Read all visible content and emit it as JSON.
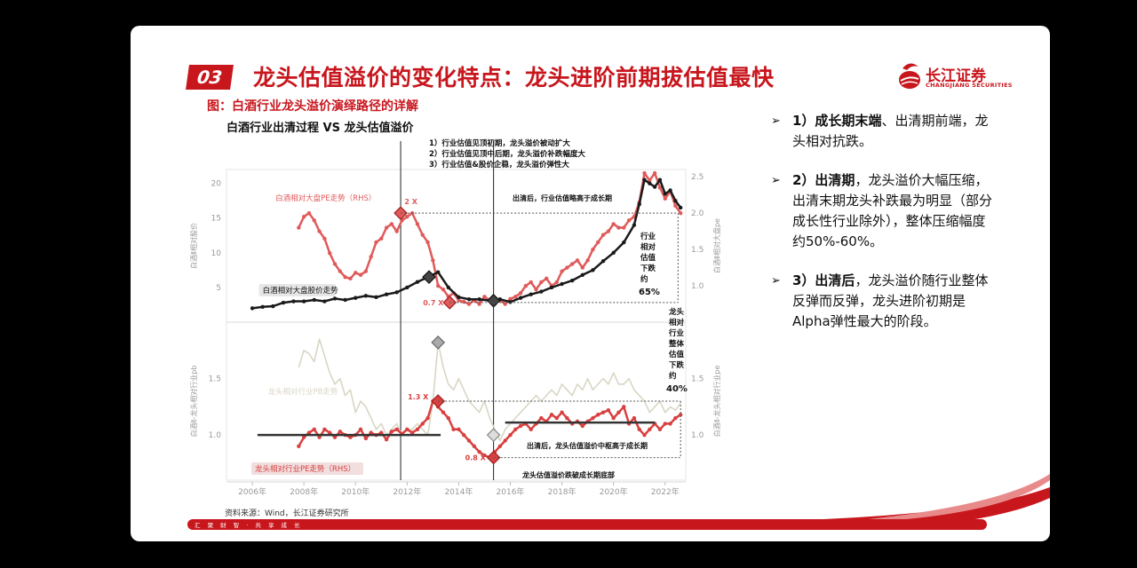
{
  "header": {
    "section_number": "03",
    "title": "龙头估值溢价的变化特点：龙头进阶前期拔估值最快",
    "logo_cn": "长江证券",
    "logo_en": "CHANGJIANG SECURITIES"
  },
  "figure": {
    "caption": "图：白酒行业龙头溢价演绎路径的详解",
    "chart_title": "白酒行业出清过程 VS 龙头估值溢价",
    "source": "资料来源：Wind，长江证券研究所"
  },
  "footer": {
    "slogan": "汇 聚 财 智 · 共 享 成 长"
  },
  "bullets": [
    {
      "bold": "1）成长期末端",
      "text": "、出清期前端，龙头相对抗跌。"
    },
    {
      "bold": "2）出清期",
      "text": "，龙头溢价大幅压缩，出清末期龙头补跌最为明显（部分成长性行业除外），整体压缩幅度约50%-60%。"
    },
    {
      "bold": "3）出清后",
      "text": "，龙头溢价随行业整体反弹而反弹，龙头进阶初期是Alpha弹性最大的阶段。"
    }
  ],
  "chart_data": {
    "type": "line",
    "x_ticks": [
      "2006年",
      "2008年",
      "2010年",
      "2012年",
      "2014年",
      "2016年",
      "2018年",
      "2020年",
      "2022年"
    ],
    "x_range": [
      2005.0,
      2022.8
    ],
    "top_panel": {
      "left_axis": {
        "label": "白酒Ⅱ相对股价",
        "ticks": [
          5,
          10,
          15,
          20
        ],
        "range": [
          0,
          22
        ]
      },
      "right_axis": {
        "label": "白酒Ⅱ相对大盘pe",
        "ticks": [
          1.0,
          1.5,
          2.0,
          2.5
        ],
        "range": [
          0.5,
          2.6
        ]
      },
      "series": [
        {
          "name": "白酒相对大盘PE走势（RHS）",
          "axis": "right",
          "color": "#e05a5a",
          "x": [
            2007.8,
            2008.0,
            2008.2,
            2008.4,
            2008.6,
            2008.8,
            2009.0,
            2009.2,
            2009.4,
            2009.6,
            2009.8,
            2010.0,
            2010.2,
            2010.4,
            2010.6,
            2010.8,
            2011.0,
            2011.2,
            2011.4,
            2011.6,
            2011.8,
            2012.0,
            2012.2,
            2012.4,
            2012.6,
            2012.8,
            2013.0,
            2013.2,
            2013.4,
            2013.6,
            2013.8,
            2014.0,
            2014.2,
            2014.4,
            2014.6,
            2014.8,
            2015.0,
            2015.2,
            2015.4,
            2015.6,
            2015.8,
            2016.0,
            2016.2,
            2016.4,
            2016.6,
            2016.8,
            2017.0,
            2017.2,
            2017.4,
            2017.6,
            2017.8,
            2018.0,
            2018.2,
            2018.4,
            2018.6,
            2018.8,
            2019.0,
            2019.2,
            2019.4,
            2019.6,
            2019.8,
            2020.0,
            2020.2,
            2020.4,
            2020.6,
            2020.8,
            2021.0,
            2021.2,
            2021.4,
            2021.6,
            2021.8,
            2022.0,
            2022.2,
            2022.4,
            2022.6
          ],
          "values": [
            1.8,
            1.95,
            2.0,
            1.9,
            1.75,
            1.65,
            1.45,
            1.3,
            1.2,
            1.12,
            1.1,
            1.18,
            1.15,
            1.2,
            1.4,
            1.6,
            1.65,
            1.8,
            1.85,
            1.75,
            1.9,
            1.95,
            2.0,
            1.85,
            1.7,
            1.6,
            1.35,
            1.0,
            0.95,
            0.85,
            0.9,
            0.8,
            0.78,
            0.75,
            0.8,
            0.75,
            0.85,
            0.8,
            0.75,
            0.8,
            0.75,
            0.82,
            0.85,
            0.9,
            1.0,
            1.05,
            0.95,
            1.05,
            1.1,
            1.0,
            1.05,
            1.2,
            1.25,
            1.3,
            1.35,
            1.25,
            1.35,
            1.5,
            1.6,
            1.7,
            1.75,
            1.85,
            1.8,
            1.8,
            1.9,
            1.95,
            2.15,
            2.55,
            2.45,
            2.55,
            2.35,
            2.2,
            2.3,
            2.1,
            2.0
          ]
        },
        {
          "name": "白酒相对大盘股价走势",
          "axis": "left",
          "color": "#1a1a1a",
          "x": [
            2006.0,
            2006.4,
            2006.8,
            2007.2,
            2007.6,
            2008.0,
            2008.4,
            2008.8,
            2009.2,
            2009.6,
            2010.0,
            2010.4,
            2010.8,
            2011.2,
            2011.6,
            2012.0,
            2012.4,
            2012.8,
            2013.2,
            2013.6,
            2014.0,
            2014.4,
            2014.8,
            2015.2,
            2015.6,
            2016.0,
            2016.4,
            2016.8,
            2017.2,
            2017.6,
            2018.0,
            2018.4,
            2018.8,
            2019.2,
            2019.6,
            2020.0,
            2020.4,
            2020.8,
            2021.0,
            2021.2,
            2021.4,
            2021.6,
            2021.8,
            2022.0,
            2022.2,
            2022.4,
            2022.6
          ],
          "values": [
            2.0,
            2.2,
            2.3,
            2.8,
            3.0,
            3.0,
            3.2,
            3.0,
            3.4,
            3.2,
            3.5,
            3.8,
            3.6,
            4.0,
            4.3,
            5.0,
            5.8,
            6.5,
            7.2,
            5.0,
            3.6,
            3.3,
            3.3,
            3.1,
            3.3,
            2.9,
            3.5,
            4.0,
            4.4,
            5.0,
            5.5,
            6.0,
            6.8,
            7.5,
            8.8,
            10.0,
            11.5,
            14.0,
            17.0,
            20.5,
            20.0,
            19.5,
            20.5,
            18.5,
            19.0,
            17.5,
            16.5
          ]
        }
      ]
    },
    "bottom_panel": {
      "left_axis": {
        "label": "白酒Ⅱ-龙头相对行业pb",
        "ticks": [
          1.0,
          1.5
        ],
        "range": [
          0.6,
          2.0
        ]
      },
      "right_axis": {
        "label": "白酒Ⅱ-龙头相对行业pe",
        "ticks": [
          1.0,
          1.5
        ],
        "range": [
          0.6,
          2.0
        ]
      },
      "series": [
        {
          "name": "龙头相对行业PB走势",
          "axis": "left",
          "color": "#d9d6c4",
          "x": [
            2007.8,
            2008.0,
            2008.2,
            2008.4,
            2008.6,
            2008.8,
            2009.0,
            2009.2,
            2009.4,
            2009.6,
            2009.8,
            2010.0,
            2010.2,
            2010.4,
            2010.6,
            2010.8,
            2011.0,
            2011.2,
            2011.4,
            2011.6,
            2011.8,
            2012.0,
            2012.2,
            2012.4,
            2012.6,
            2012.8,
            2013.0,
            2013.2,
            2013.4,
            2013.6,
            2013.8,
            2014.0,
            2014.2,
            2014.4,
            2014.6,
            2014.8,
            2015.0,
            2015.2,
            2015.4,
            2015.6,
            2015.8,
            2016.0,
            2016.2,
            2016.4,
            2016.6,
            2016.8,
            2017.0,
            2017.2,
            2017.4,
            2017.6,
            2017.8,
            2018.0,
            2018.2,
            2018.4,
            2018.6,
            2018.8,
            2019.0,
            2019.2,
            2019.4,
            2019.6,
            2019.8,
            2020.0,
            2020.2,
            2020.4,
            2020.6,
            2020.8,
            2021.0,
            2021.2,
            2021.4,
            2021.6,
            2021.8,
            2022.0,
            2022.2,
            2022.4,
            2022.6
          ],
          "values": [
            1.6,
            1.75,
            1.72,
            1.65,
            1.85,
            1.7,
            1.55,
            1.45,
            1.5,
            1.35,
            1.4,
            1.2,
            1.3,
            1.25,
            1.15,
            1.05,
            1.1,
            1.0,
            1.05,
            1.1,
            1.0,
            1.05,
            1.05,
            1.1,
            1.05,
            1.0,
            1.3,
            1.82,
            1.6,
            1.45,
            1.4,
            1.5,
            1.4,
            1.3,
            1.25,
            1.2,
            1.3,
            1.15,
            1.05,
            0.95,
            1.05,
            1.1,
            1.15,
            1.2,
            1.25,
            1.3,
            1.35,
            1.3,
            1.35,
            1.4,
            1.35,
            1.45,
            1.4,
            1.35,
            1.45,
            1.4,
            1.5,
            1.4,
            1.45,
            1.5,
            1.45,
            1.55,
            1.45,
            1.45,
            1.5,
            1.4,
            1.35,
            1.3,
            1.2,
            1.25,
            1.3,
            1.2,
            1.25,
            1.22,
            1.28
          ]
        },
        {
          "name": "龙头相对行业PE走势（RHS）",
          "axis": "right",
          "color": "#d94040",
          "x": [
            2007.8,
            2008.0,
            2008.2,
            2008.4,
            2008.6,
            2008.8,
            2009.0,
            2009.2,
            2009.4,
            2009.6,
            2009.8,
            2010.0,
            2010.2,
            2010.4,
            2010.6,
            2010.8,
            2011.0,
            2011.2,
            2011.4,
            2011.6,
            2011.8,
            2012.0,
            2012.2,
            2012.4,
            2012.6,
            2012.8,
            2013.0,
            2013.2,
            2013.4,
            2013.6,
            2013.8,
            2014.0,
            2014.2,
            2014.4,
            2014.6,
            2014.8,
            2015.0,
            2015.2,
            2015.4,
            2015.6,
            2015.8,
            2016.0,
            2016.2,
            2016.4,
            2016.6,
            2016.8,
            2017.0,
            2017.2,
            2017.4,
            2017.6,
            2017.8,
            2018.0,
            2018.2,
            2018.4,
            2018.6,
            2018.8,
            2019.0,
            2019.2,
            2019.4,
            2019.6,
            2019.8,
            2020.0,
            2020.2,
            2020.4,
            2020.6,
            2020.8,
            2021.0,
            2021.2,
            2021.4,
            2021.6,
            2021.8,
            2022.0,
            2022.2,
            2022.4,
            2022.6
          ],
          "values": [
            0.9,
            0.98,
            1.02,
            1.05,
            0.98,
            1.05,
            1.02,
            0.98,
            1.03,
            1.0,
            0.98,
            1.0,
            1.05,
            0.97,
            1.02,
            1.0,
            1.02,
            0.96,
            1.03,
            1.05,
            1.01,
            1.05,
            1.02,
            1.05,
            1.1,
            1.15,
            1.3,
            1.25,
            1.2,
            1.15,
            1.05,
            1.05,
            1.0,
            0.95,
            0.9,
            0.85,
            0.82,
            0.8,
            0.85,
            0.9,
            0.95,
            1.0,
            1.05,
            1.08,
            1.1,
            1.05,
            1.1,
            1.15,
            1.12,
            1.18,
            1.15,
            1.2,
            1.15,
            1.1,
            1.12,
            1.08,
            1.12,
            1.15,
            1.18,
            1.2,
            1.22,
            1.15,
            1.2,
            1.25,
            1.1,
            1.15,
            1.05,
            1.0,
            1.05,
            1.1,
            1.05,
            1.1,
            1.1,
            1.15,
            1.18
          ]
        }
      ]
    },
    "phase_lines": {
      "x": [
        2011.75,
        2015.35
      ]
    },
    "phase_notes": [
      "1）行业估值见顶初期，龙头溢价被动扩大",
      "2）行业估值见顶中后期，龙头溢价补跌幅度大",
      "3）行业估值&股价企稳，龙头溢价弹性大"
    ],
    "annotations": {
      "top_after": "出清后，行业估值略高于成长期",
      "top_peak_label": "2 X",
      "top_trough_label": "0.7 X",
      "industry_drop": [
        "行业",
        "相对",
        "估值",
        "下跌",
        "约"
      ],
      "industry_drop_pct": "65%",
      "leader_drop": [
        "龙头",
        "相对",
        "行业",
        "整体",
        "估值",
        "下跌",
        "约"
      ],
      "leader_drop_pct": "40%",
      "bottom_peak_label": "1.3 X",
      "bottom_trough_label": "0.8 X",
      "bottom_after": "出清后，龙头估值溢价中枢高于成长期",
      "bottom_trough_note": "龙头估值溢价跌破成长期底部"
    },
    "center_refs": [
      {
        "x": [
          2006.2,
          2013.3
        ],
        "value": 1.0
      },
      {
        "x": [
          2015.8,
          2021.6
        ],
        "value": 1.11
      }
    ]
  }
}
